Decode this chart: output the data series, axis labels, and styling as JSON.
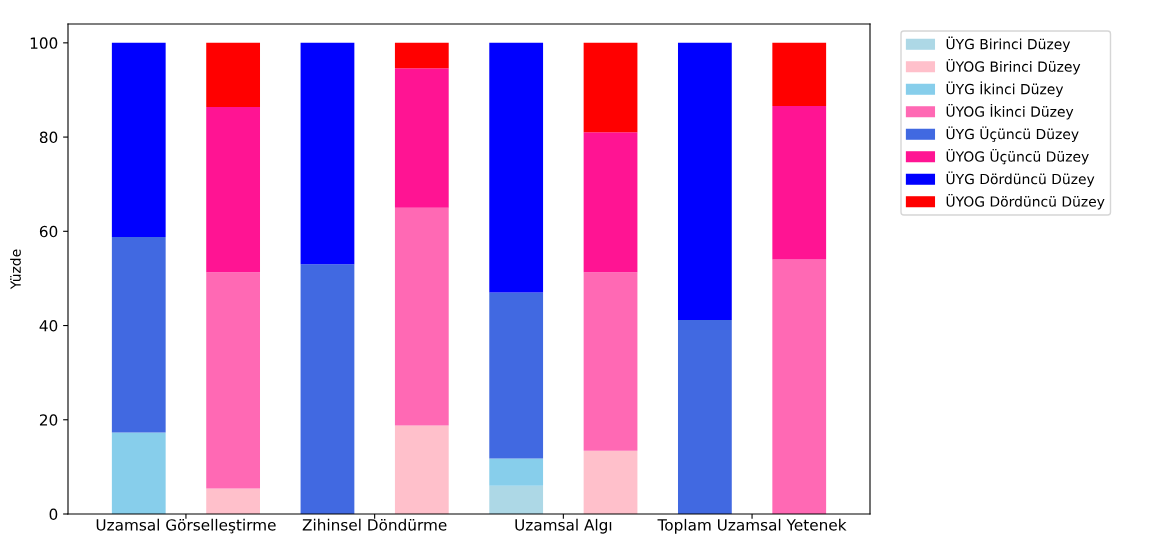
{
  "chart_data": {
    "type": "bar",
    "stacked": true,
    "ylabel": "Yüzde",
    "categories": [
      "Uzamsal Görselleştirme",
      null,
      "Zihinsel Döndürme",
      null,
      "Uzamsal Algı",
      null,
      "Toplam Uzamsal Yetenek",
      null
    ],
    "series": [
      {
        "name": "ÜYG Birinci Düzey",
        "color": "#add8e6",
        "values": [
          0,
          null,
          0,
          null,
          6.0,
          null,
          0,
          null
        ]
      },
      {
        "name": "ÜYOG Birinci Düzey",
        "color": "#ffc0cb",
        "values": [
          null,
          5.4,
          null,
          18.8,
          null,
          13.4,
          null,
          0
        ]
      },
      {
        "name": "ÜYG İkinci Düzey",
        "color": "#87ceeb",
        "values": [
          17.3,
          null,
          0,
          null,
          5.8,
          null,
          0,
          null
        ]
      },
      {
        "name": "ÜYOG İkinci Düzey",
        "color": "#ff69b4",
        "values": [
          null,
          45.9,
          null,
          46.2,
          null,
          37.9,
          null,
          54.0
        ]
      },
      {
        "name": "ÜYG Üçüncü Düzey",
        "color": "#4169e1",
        "values": [
          41.5,
          null,
          53.0,
          null,
          35.2,
          null,
          41.2,
          null
        ]
      },
      {
        "name": "ÜYOG Üçüncü Düzey",
        "color": "#ff1493",
        "values": [
          null,
          35.1,
          null,
          29.6,
          null,
          29.7,
          null,
          32.6
        ]
      },
      {
        "name": "ÜYG Dördüncü Düzey",
        "color": "#0000ff",
        "values": [
          41.2,
          null,
          47.0,
          null,
          53.0,
          null,
          58.8,
          null
        ]
      },
      {
        "name": "ÜYOG Dördüncü Düzey",
        "color": "#ff0000",
        "values": [
          null,
          13.6,
          null,
          5.4,
          null,
          19.0,
          null,
          13.4
        ]
      }
    ],
    "ylim": [
      0,
      104
    ],
    "yticks": [
      0,
      20,
      40,
      60,
      80,
      100
    ],
    "legend": "top right",
    "grid": false
  }
}
